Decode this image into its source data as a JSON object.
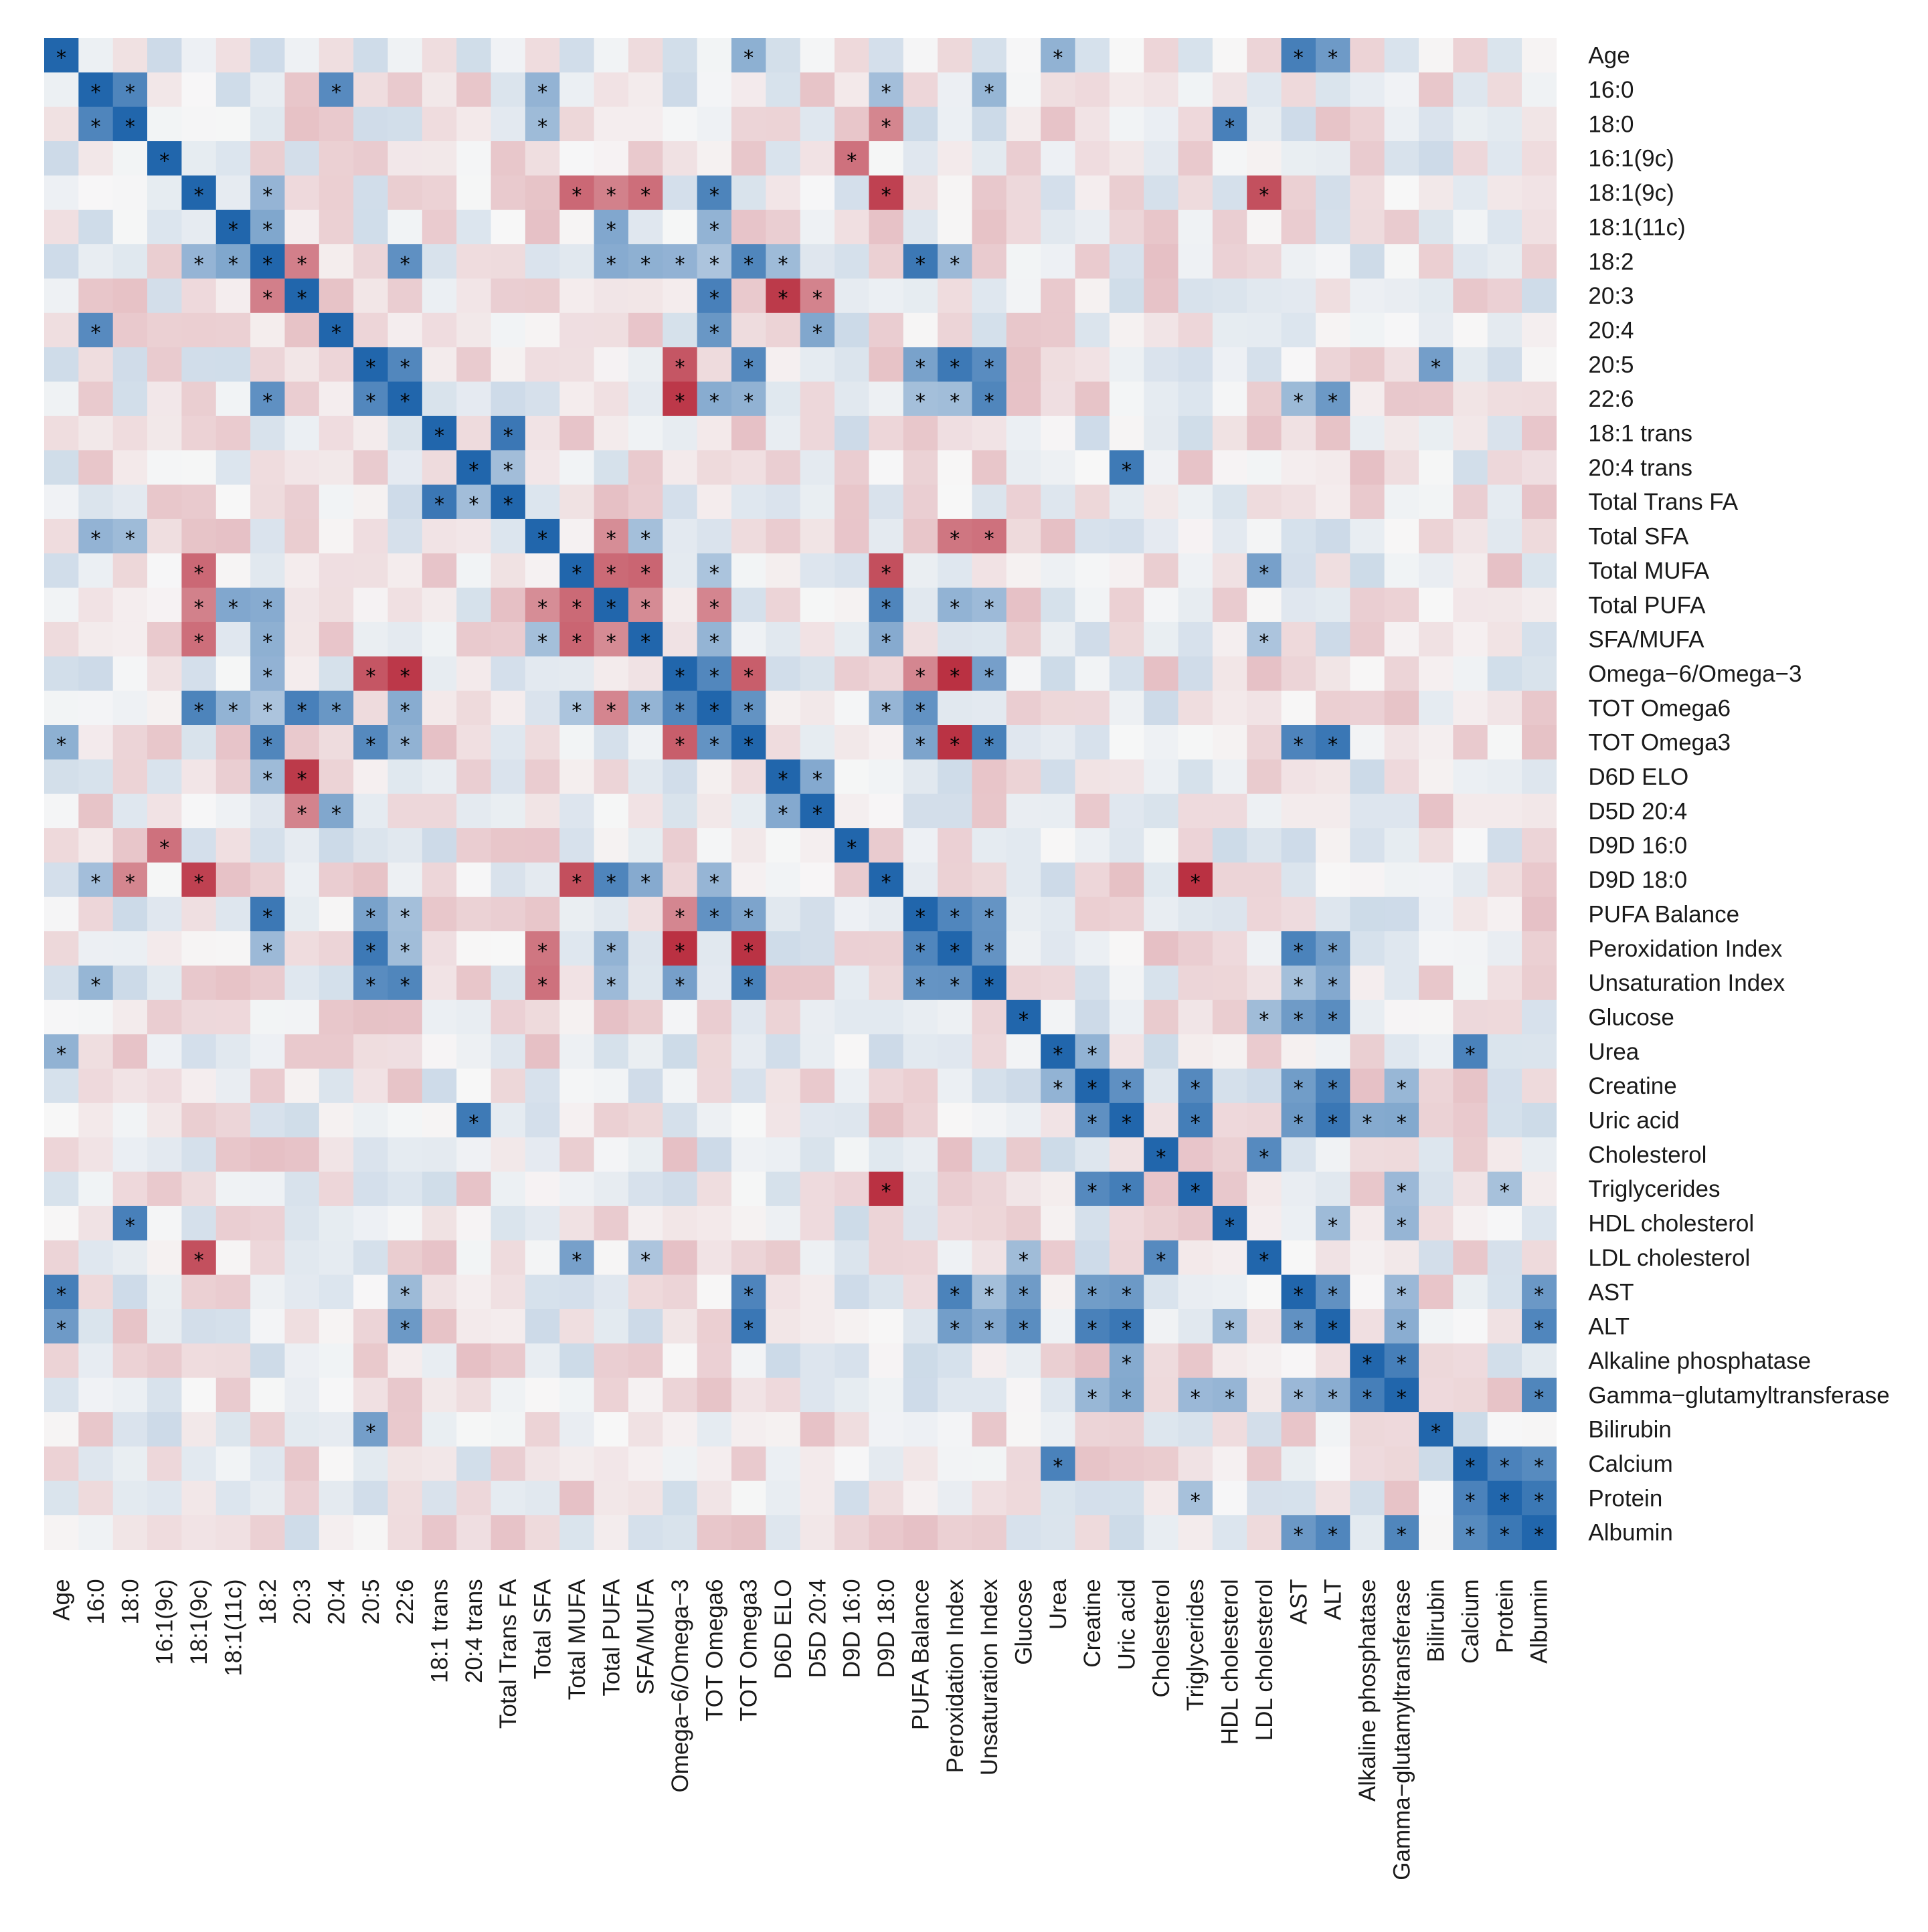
{
  "chart_data": {
    "type": "heatmap",
    "title": "",
    "variables": [
      "Age",
      "16:0",
      "18:0",
      "16:1(9c)",
      "18:1(9c)",
      "18:1(11c)",
      "18:2",
      "20:3",
      "20:4",
      "20:5",
      "22:6",
      "18:1 trans",
      "20:4 trans",
      "Total Trans FA",
      "Total SFA",
      "Total MUFA",
      "Total PUFA",
      "SFA/MUFA",
      "Omega−6/Omega−3",
      "TOT Omega6",
      "TOT Omega3",
      "D6D ELO",
      "D5D 20:4",
      "D9D 16:0",
      "D9D 18:0",
      "PUFA Balance",
      "Peroxidation Index",
      "Unsaturation Index",
      "Glucose",
      "Urea",
      "Creatine",
      "Uric acid",
      "Cholesterol",
      "Triglycerides",
      "HDL cholesterol",
      "LDL cholesterol",
      "AST",
      "ALT",
      "Alkaline phosphatase",
      "Gamma−glutamyltransferase",
      "Bilirubin",
      "Calcium",
      "Protein",
      "Albumin"
    ],
    "value_range": [
      -1,
      1
    ],
    "color_scale": {
      "negative": "#b2182b",
      "zero": "#f7f7f7",
      "positive": "#2166ac"
    },
    "significance_marker": "*",
    "significant_pairs": [
      [
        0,
        20
      ],
      [
        0,
        29
      ],
      [
        0,
        36
      ],
      [
        0,
        37
      ],
      [
        1,
        2
      ],
      [
        1,
        8
      ],
      [
        1,
        14
      ],
      [
        1,
        24
      ],
      [
        1,
        27
      ],
      [
        2,
        14
      ],
      [
        2,
        24
      ],
      [
        2,
        34
      ],
      [
        3,
        23
      ],
      [
        4,
        6
      ],
      [
        4,
        15
      ],
      [
        4,
        16
      ],
      [
        4,
        17
      ],
      [
        4,
        19
      ],
      [
        4,
        24
      ],
      [
        4,
        35
      ],
      [
        5,
        6
      ],
      [
        5,
        16
      ],
      [
        5,
        19
      ],
      [
        6,
        7
      ],
      [
        6,
        10
      ],
      [
        6,
        16
      ],
      [
        6,
        17
      ],
      [
        6,
        18
      ],
      [
        6,
        19
      ],
      [
        6,
        20
      ],
      [
        6,
        21
      ],
      [
        6,
        25
      ],
      [
        6,
        26
      ],
      [
        7,
        19
      ],
      [
        7,
        21
      ],
      [
        7,
        22
      ],
      [
        8,
        19
      ],
      [
        8,
        22
      ],
      [
        9,
        10
      ],
      [
        9,
        18
      ],
      [
        9,
        20
      ],
      [
        9,
        25
      ],
      [
        9,
        26
      ],
      [
        9,
        27
      ],
      [
        9,
        40
      ],
      [
        10,
        18
      ],
      [
        10,
        19
      ],
      [
        10,
        20
      ],
      [
        10,
        25
      ],
      [
        10,
        26
      ],
      [
        10,
        27
      ],
      [
        10,
        36
      ],
      [
        10,
        37
      ],
      [
        11,
        13
      ],
      [
        12,
        13
      ],
      [
        12,
        31
      ],
      [
        14,
        16
      ],
      [
        14,
        17
      ],
      [
        14,
        26
      ],
      [
        14,
        27
      ],
      [
        15,
        16
      ],
      [
        15,
        17
      ],
      [
        15,
        19
      ],
      [
        15,
        24
      ],
      [
        15,
        35
      ],
      [
        16,
        17
      ],
      [
        16,
        19
      ],
      [
        16,
        24
      ],
      [
        16,
        26
      ],
      [
        16,
        27
      ],
      [
        17,
        19
      ],
      [
        17,
        24
      ],
      [
        17,
        35
      ],
      [
        18,
        19
      ],
      [
        18,
        20
      ],
      [
        18,
        25
      ],
      [
        18,
        26
      ],
      [
        18,
        27
      ],
      [
        19,
        20
      ],
      [
        19,
        24
      ],
      [
        19,
        25
      ],
      [
        20,
        25
      ],
      [
        20,
        26
      ],
      [
        20,
        27
      ],
      [
        20,
        36
      ],
      [
        20,
        37
      ],
      [
        21,
        22
      ],
      [
        24,
        33
      ],
      [
        25,
        26
      ],
      [
        25,
        27
      ],
      [
        26,
        27
      ],
      [
        26,
        36
      ],
      [
        26,
        37
      ],
      [
        27,
        36
      ],
      [
        27,
        37
      ],
      [
        28,
        35
      ],
      [
        28,
        36
      ],
      [
        28,
        37
      ],
      [
        29,
        30
      ],
      [
        29,
        41
      ],
      [
        30,
        31
      ],
      [
        30,
        33
      ],
      [
        30,
        36
      ],
      [
        30,
        37
      ],
      [
        30,
        39
      ],
      [
        31,
        33
      ],
      [
        31,
        36
      ],
      [
        31,
        37
      ],
      [
        31,
        38
      ],
      [
        31,
        39
      ],
      [
        32,
        35
      ],
      [
        33,
        39
      ],
      [
        33,
        42
      ],
      [
        34,
        37
      ],
      [
        34,
        39
      ],
      [
        36,
        37
      ],
      [
        36,
        39
      ],
      [
        36,
        43
      ],
      [
        37,
        39
      ],
      [
        37,
        43
      ],
      [
        38,
        39
      ],
      [
        39,
        43
      ],
      [
        41,
        42
      ],
      [
        41,
        43
      ],
      [
        42,
        43
      ]
    ],
    "xlabel": "",
    "ylabel": ""
  }
}
